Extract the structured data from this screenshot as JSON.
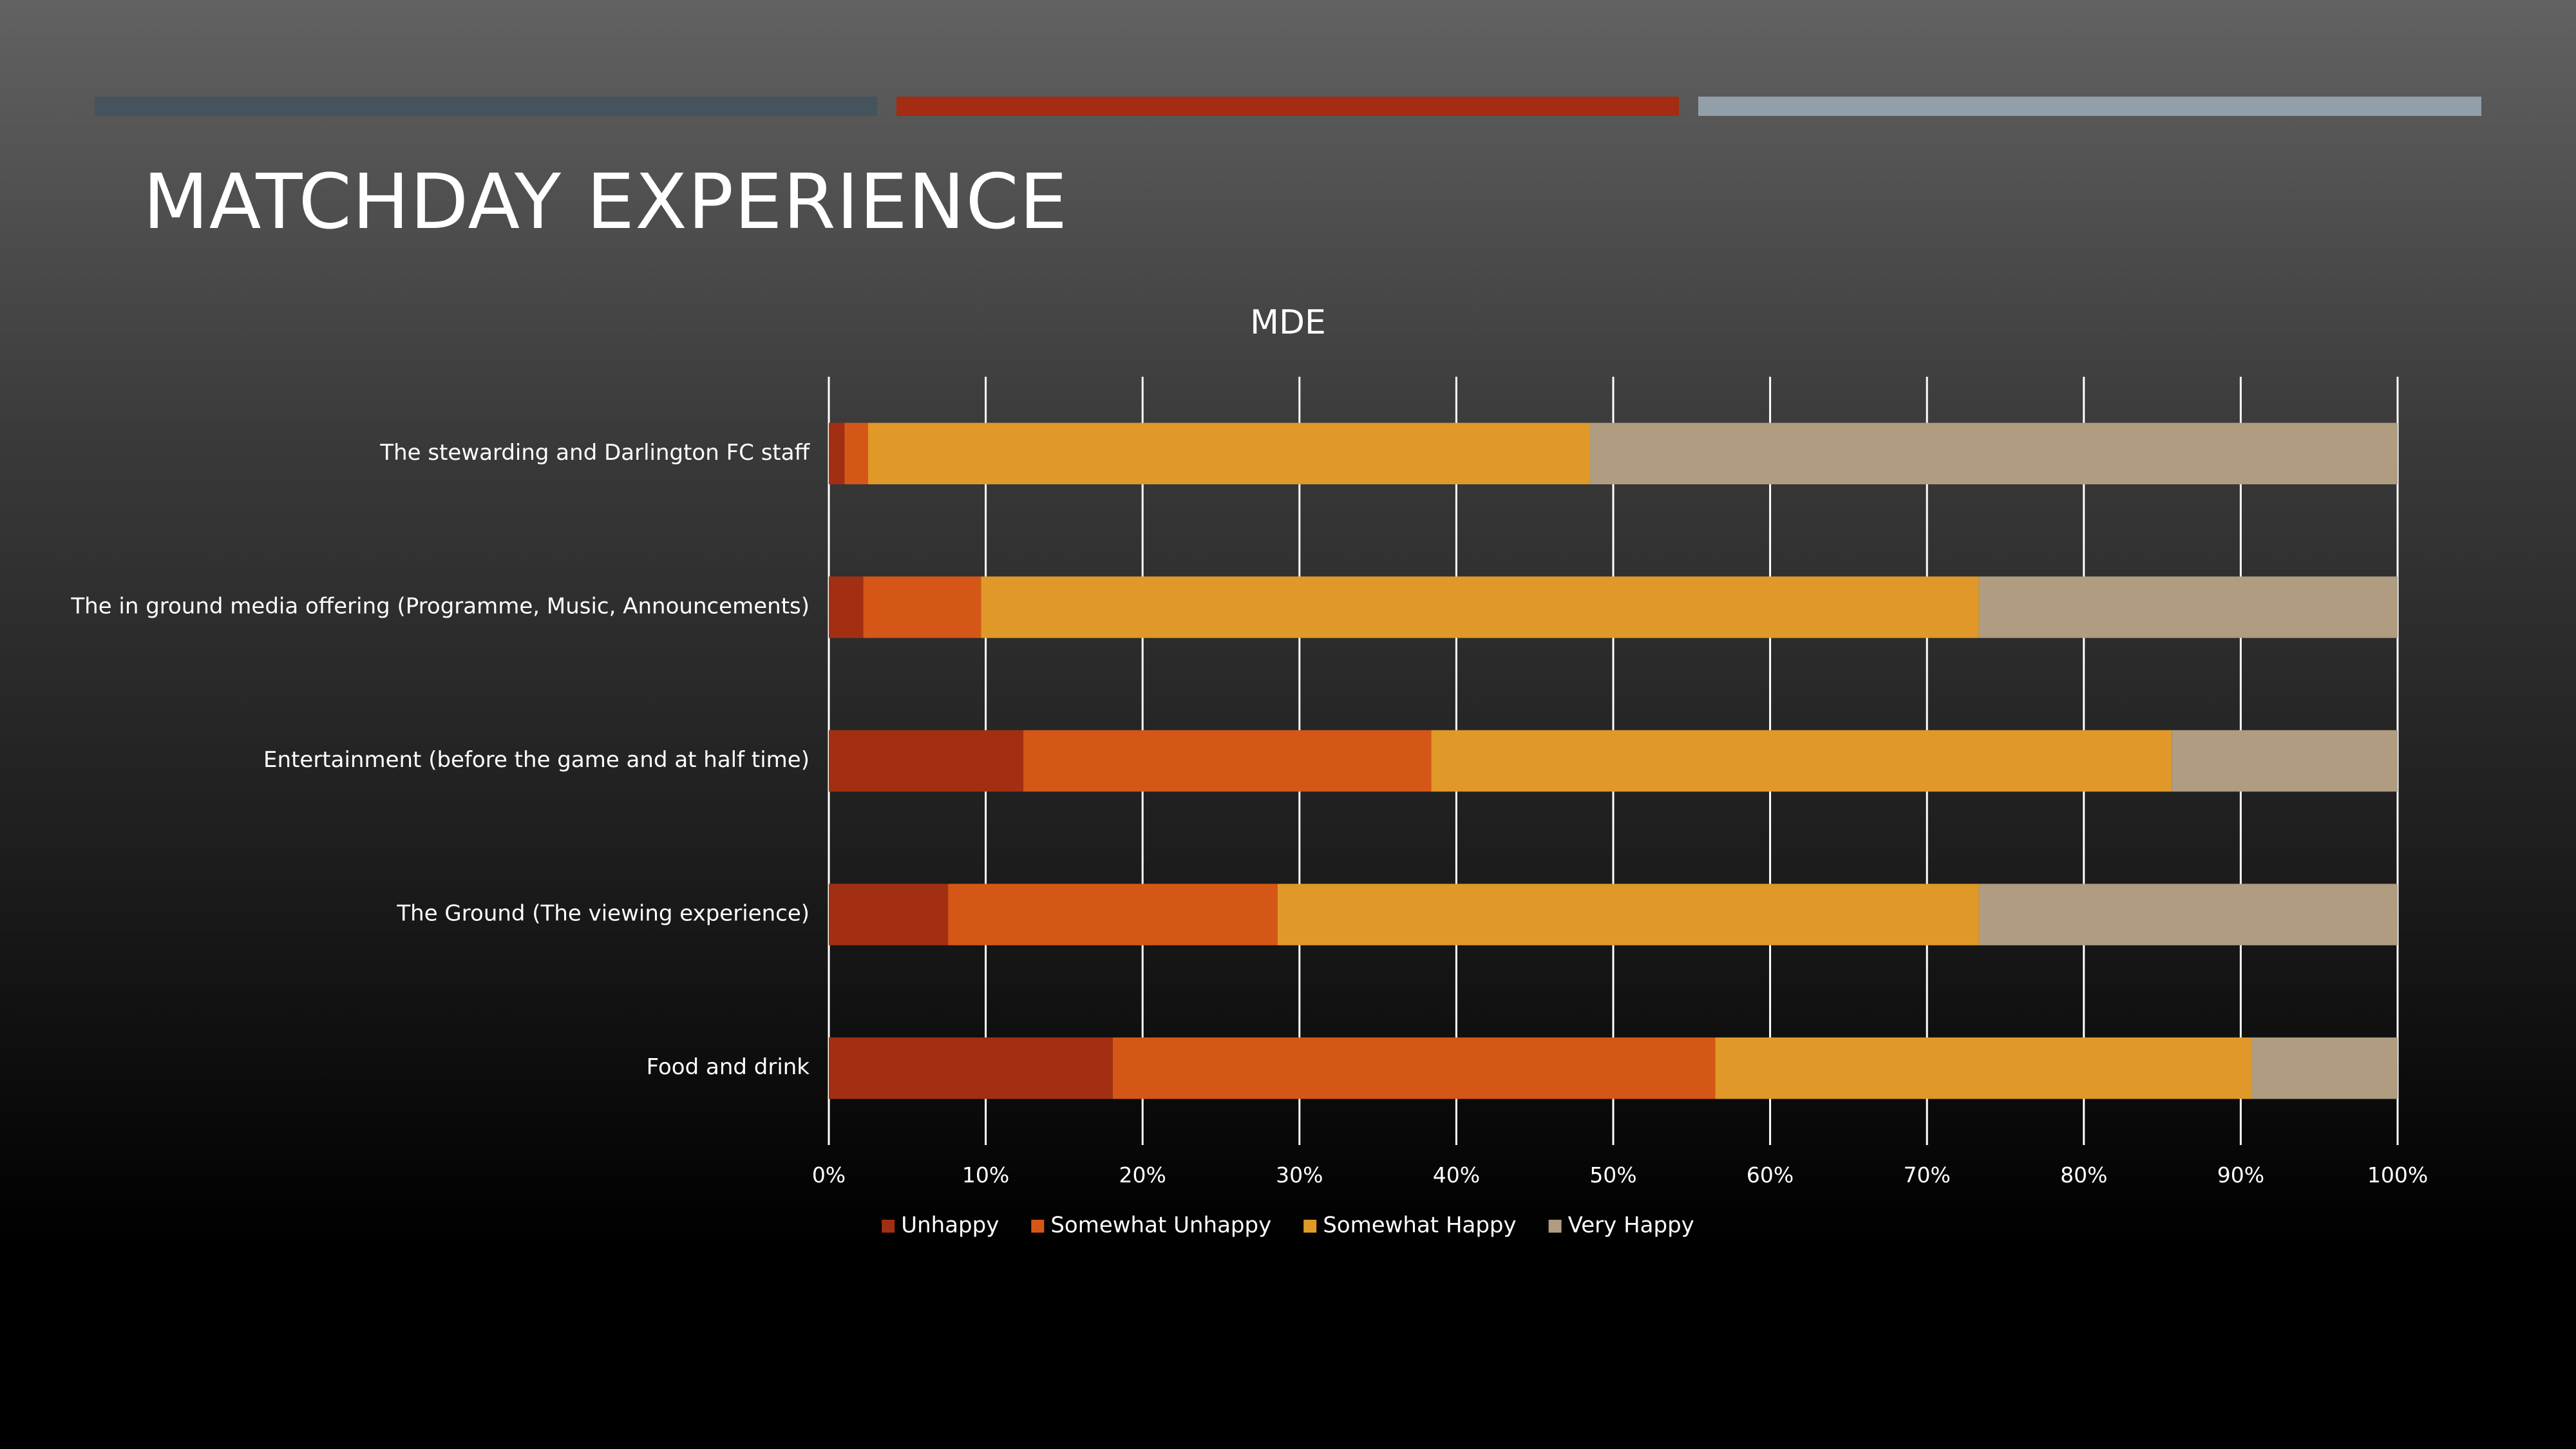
{
  "slide": {
    "title": "MATCHDAY EXPERIENCE",
    "accent_colors": [
      "#44535c",
      "#a32c12",
      "#929ea8"
    ]
  },
  "chart_data": {
    "type": "bar",
    "orientation": "horizontal",
    "stacked": "percent",
    "title": "MDE",
    "categories": [
      "The stewarding and Darlington FC staff",
      "The in ground media offering (Programme, Music, Announcements)",
      "Entertainment (before the game and at half time)",
      "The Ground (The viewing experience)",
      "Food and drink"
    ],
    "series": [
      {
        "name": "Unhappy",
        "color": "#a32f12",
        "values": [
          1,
          2.2,
          12.4,
          7.6,
          18.1
        ]
      },
      {
        "name": "Somewhat Unhappy",
        "color": "#d55717",
        "values": [
          1.5,
          7.5,
          26.0,
          21.0,
          38.4
        ]
      },
      {
        "name": "Somewhat Happy",
        "color": "#e09928",
        "values": [
          46.0,
          63.6,
          47.2,
          44.7,
          34.2
        ]
      },
      {
        "name": "Very Happy",
        "color": "#b09c80",
        "values": [
          51.5,
          26.7,
          14.4,
          26.7,
          9.3
        ]
      }
    ],
    "xlim": [
      0,
      100
    ],
    "x_ticks": [
      "0%",
      "10%",
      "20%",
      "30%",
      "40%",
      "50%",
      "60%",
      "70%",
      "80%",
      "90%",
      "100%"
    ],
    "grid": true,
    "legend": "bottom"
  }
}
